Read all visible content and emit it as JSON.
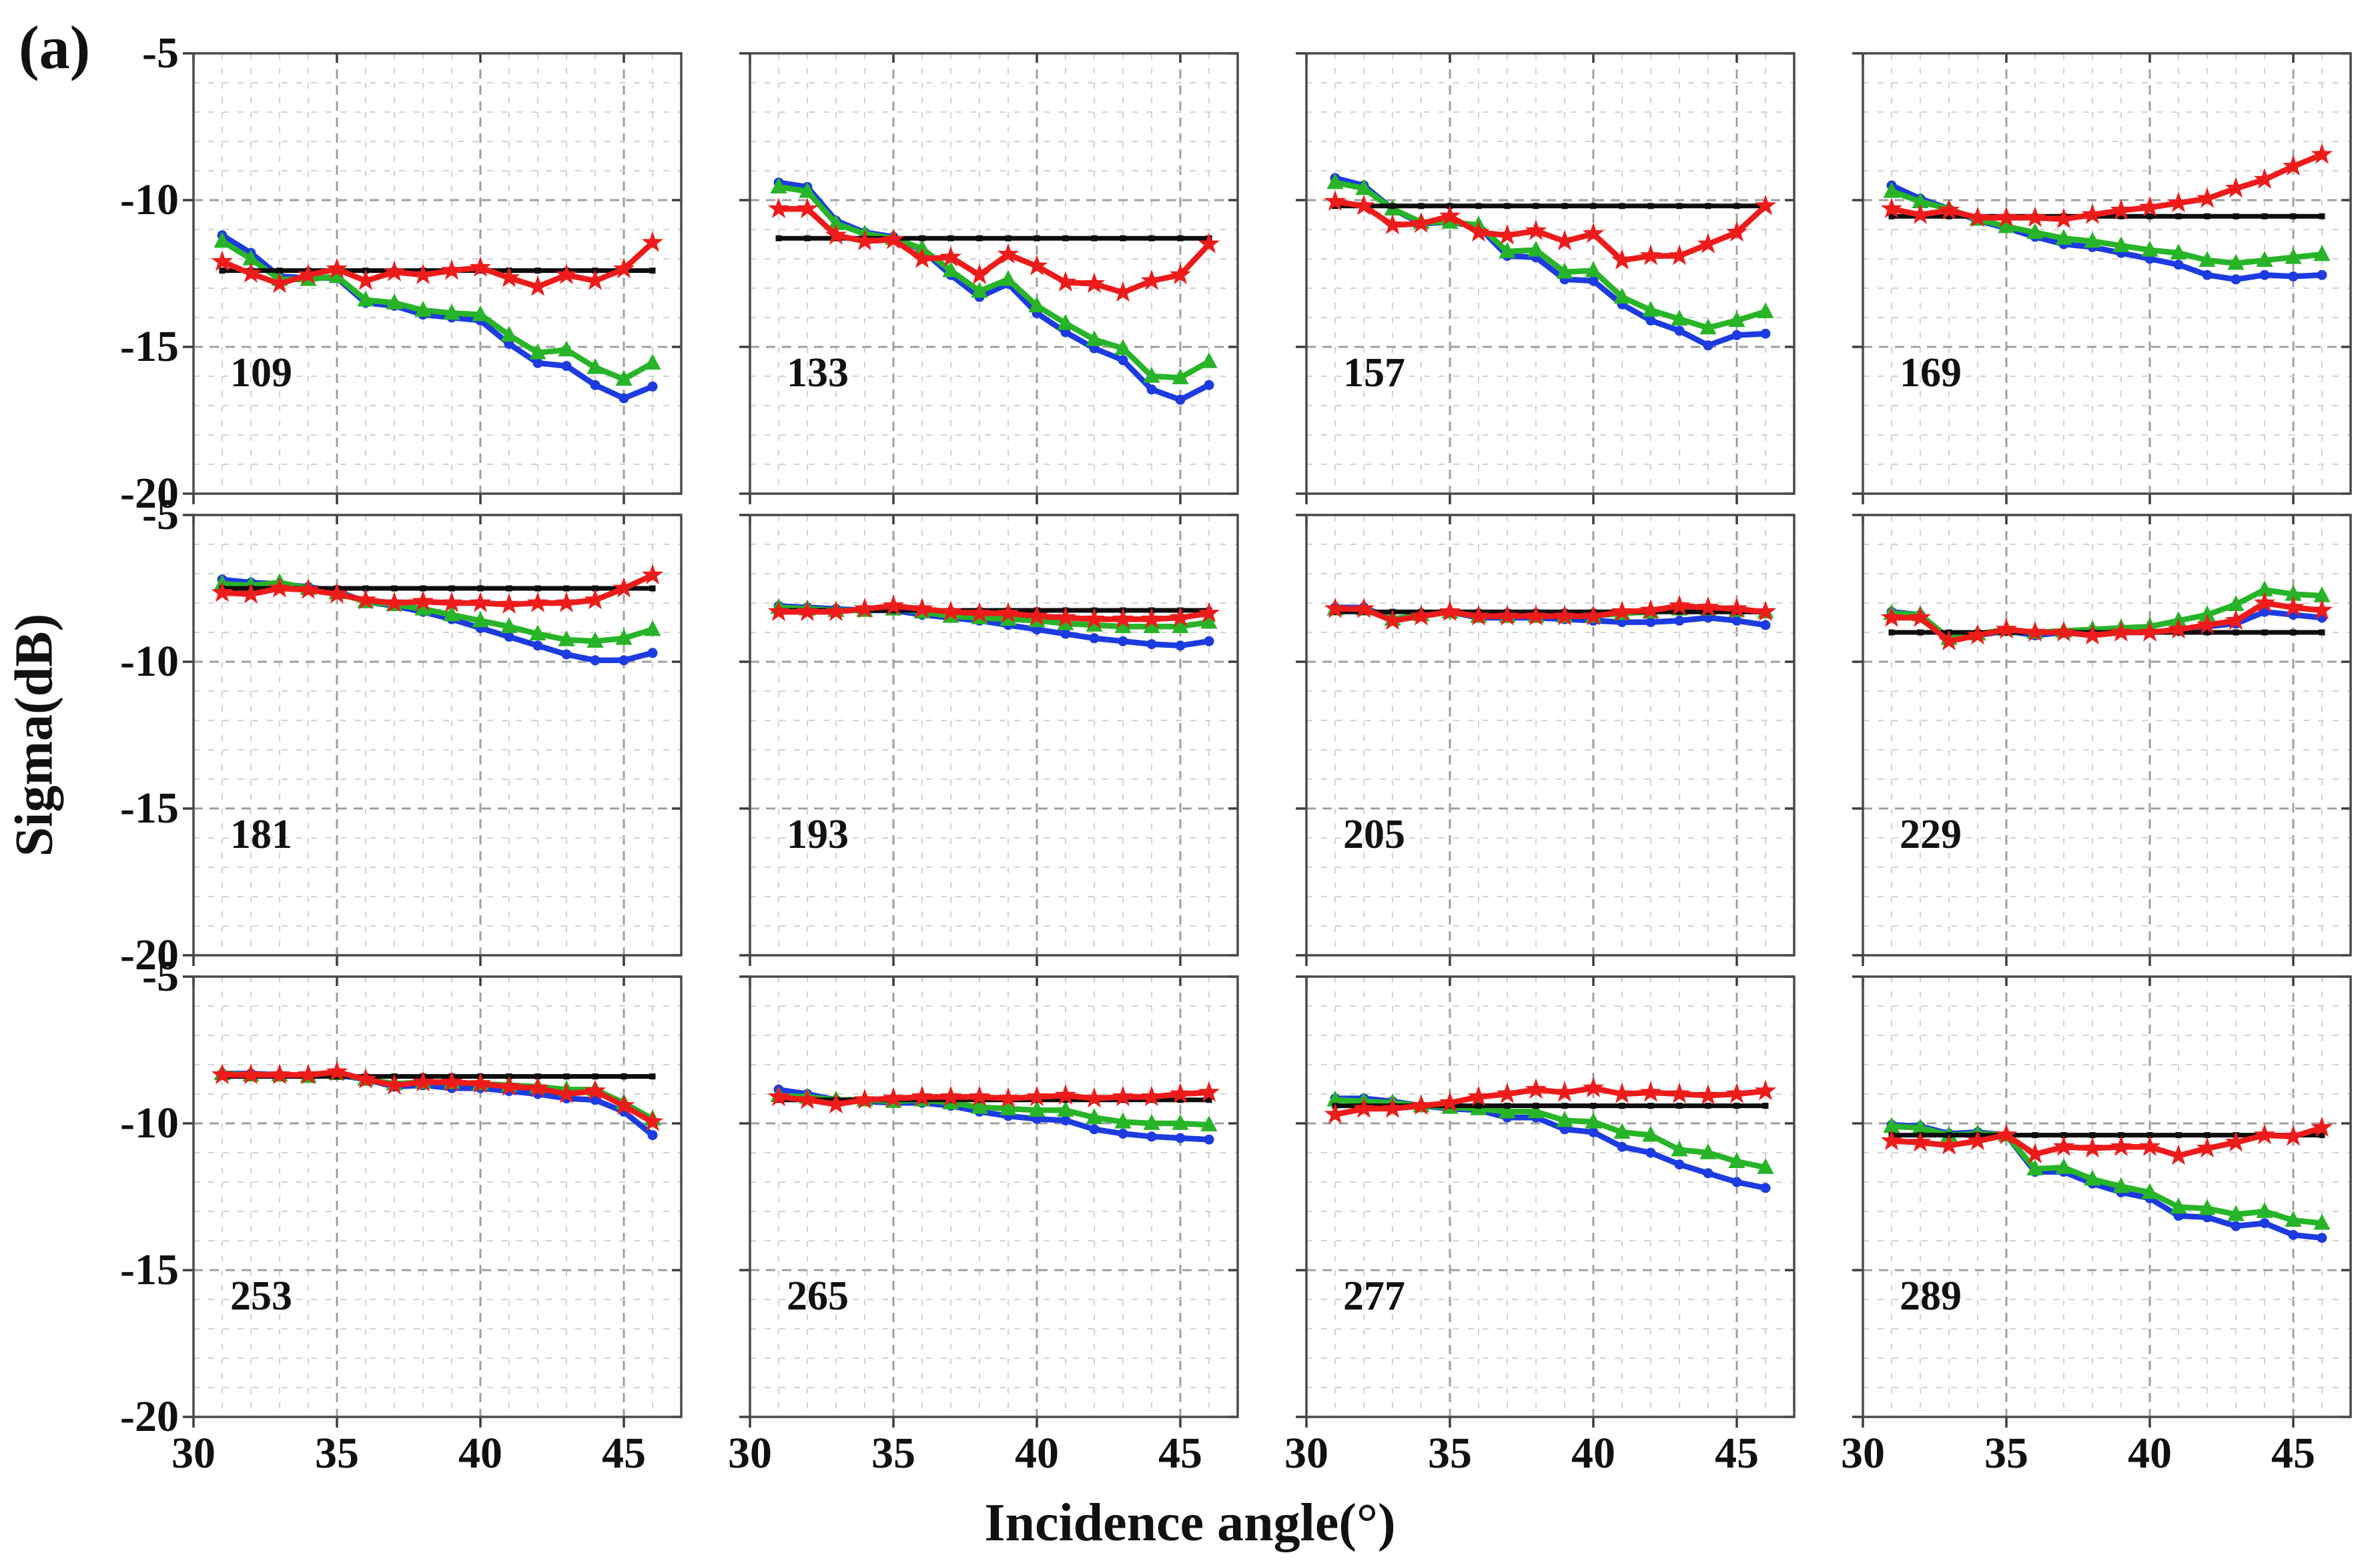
{
  "figure_label": "(a)",
  "axes": {
    "xlabel": "Incidence angle(°)",
    "ylabel": "Sigma(dB)",
    "x_tick_labels": [
      "30",
      "35",
      "40",
      "45"
    ],
    "y_tick_labels": [
      "-5",
      "-10",
      "-15",
      "-20"
    ],
    "x_ticks": [
      30,
      35,
      40,
      45
    ],
    "y_ticks": [
      -5,
      -10,
      -15,
      -20
    ],
    "xlim": [
      30,
      47
    ],
    "ylim": [
      -20,
      -5
    ],
    "grid": "on"
  },
  "colors": {
    "blue_series": "#1c3be0",
    "green_series": "#28b428",
    "red_series": "#ee1b1b",
    "reference_line": "#0d0d0d",
    "grid_minor": "#d5d5d5",
    "grid_major": "#9f9f9f",
    "axis_border": "#4a4a4a",
    "tick_mark": "#3c3c3c"
  },
  "chart_data": {
    "type": "line",
    "title": "",
    "xlabel": "Incidence angle(°)",
    "ylabel": "Sigma(dB)",
    "xlim": [
      30,
      47
    ],
    "ylim": [
      -20,
      -5
    ],
    "x_values": [
      31,
      32,
      33,
      34,
      35,
      36,
      37,
      38,
      39,
      40,
      41,
      42,
      43,
      44,
      45,
      46
    ],
    "series_style": {
      "blue": {
        "marker": "circle",
        "color": "#1c3be0"
      },
      "green": {
        "marker": "triangle",
        "color": "#28b428"
      },
      "red": {
        "marker": "star",
        "color": "#ee1b1b"
      },
      "reference": {
        "marker": "square",
        "color": "#0d0d0d"
      }
    },
    "panels": [
      {
        "label": "109",
        "reference": -12.4,
        "series": {
          "blue": [
            -11.2,
            -11.8,
            -12.6,
            -12.65,
            -12.65,
            -13.5,
            -13.6,
            -13.9,
            -14.0,
            -14.1,
            -14.9,
            -15.55,
            -15.65,
            -16.3,
            -16.75,
            -16.35
          ],
          "green": [
            -11.4,
            -12.0,
            -12.7,
            -12.7,
            -12.6,
            -13.4,
            -13.5,
            -13.75,
            -13.85,
            -13.9,
            -14.6,
            -15.2,
            -15.1,
            -15.7,
            -16.1,
            -15.55
          ],
          "red": [
            -12.1,
            -12.5,
            -12.85,
            -12.55,
            -12.35,
            -12.75,
            -12.45,
            -12.55,
            -12.4,
            -12.3,
            -12.65,
            -12.95,
            -12.55,
            -12.75,
            -12.35,
            -11.45
          ]
        }
      },
      {
        "label": "133",
        "reference": -11.3,
        "series": {
          "blue": [
            -9.4,
            -9.55,
            -10.7,
            -11.1,
            -11.25,
            -11.7,
            -12.55,
            -13.3,
            -12.85,
            -13.85,
            -14.5,
            -15.05,
            -15.45,
            -16.45,
            -16.8,
            -16.3
          ],
          "green": [
            -9.55,
            -9.7,
            -10.8,
            -11.15,
            -11.3,
            -11.65,
            -12.4,
            -13.1,
            -12.7,
            -13.6,
            -14.2,
            -14.75,
            -15.05,
            -16.0,
            -16.05,
            -15.5
          ],
          "red": [
            -10.3,
            -10.3,
            -11.2,
            -11.4,
            -11.35,
            -12.0,
            -11.95,
            -12.55,
            -11.85,
            -12.25,
            -12.8,
            -12.85,
            -13.15,
            -12.75,
            -12.55,
            -11.5
          ]
        }
      },
      {
        "label": "157",
        "reference": -10.2,
        "series": {
          "blue": [
            -9.25,
            -9.5,
            -10.3,
            -10.8,
            -10.75,
            -10.9,
            -11.9,
            -11.95,
            -12.7,
            -12.75,
            -13.55,
            -14.1,
            -14.45,
            -14.95,
            -14.6,
            -14.55
          ],
          "green": [
            -9.4,
            -9.6,
            -10.3,
            -10.75,
            -10.75,
            -10.85,
            -11.75,
            -11.7,
            -12.45,
            -12.4,
            -13.3,
            -13.75,
            -14.05,
            -14.35,
            -14.1,
            -13.8
          ],
          "red": [
            -10.05,
            -10.2,
            -10.85,
            -10.8,
            -10.55,
            -11.1,
            -11.2,
            -11.05,
            -11.4,
            -11.15,
            -12.05,
            -11.9,
            -11.9,
            -11.5,
            -11.1,
            -10.2
          ]
        }
      },
      {
        "label": "169",
        "reference": -10.55,
        "series": {
          "blue": [
            -9.5,
            -9.95,
            -10.3,
            -10.7,
            -10.95,
            -11.25,
            -11.5,
            -11.6,
            -11.8,
            -12.0,
            -12.2,
            -12.55,
            -12.7,
            -12.55,
            -12.6,
            -12.55
          ],
          "green": [
            -9.7,
            -10.05,
            -10.3,
            -10.65,
            -10.9,
            -11.1,
            -11.3,
            -11.4,
            -11.55,
            -11.7,
            -11.8,
            -12.05,
            -12.15,
            -12.05,
            -11.95,
            -11.85
          ],
          "red": [
            -10.3,
            -10.5,
            -10.35,
            -10.6,
            -10.6,
            -10.6,
            -10.65,
            -10.5,
            -10.35,
            -10.25,
            -10.1,
            -9.95,
            -9.6,
            -9.3,
            -8.85,
            -8.45
          ]
        }
      },
      {
        "label": "181",
        "reference": -7.5,
        "series": {
          "blue": [
            -7.2,
            -7.3,
            -7.35,
            -7.45,
            -7.6,
            -7.95,
            -8.1,
            -8.3,
            -8.55,
            -8.85,
            -9.15,
            -9.45,
            -9.75,
            -9.95,
            -9.95,
            -9.7
          ],
          "green": [
            -7.35,
            -7.4,
            -7.3,
            -7.5,
            -7.65,
            -7.95,
            -8.05,
            -8.2,
            -8.4,
            -8.6,
            -8.8,
            -9.05,
            -9.25,
            -9.3,
            -9.2,
            -8.9
          ],
          "red": [
            -7.65,
            -7.7,
            -7.5,
            -7.55,
            -7.7,
            -7.9,
            -8.0,
            -7.95,
            -8.0,
            -8.0,
            -8.05,
            -8.0,
            -8.0,
            -7.9,
            -7.5,
            -7.05
          ]
        }
      },
      {
        "label": "193",
        "reference": -8.25,
        "series": {
          "blue": [
            -8.1,
            -8.15,
            -8.2,
            -8.25,
            -8.25,
            -8.4,
            -8.5,
            -8.6,
            -8.75,
            -8.9,
            -9.05,
            -9.2,
            -9.3,
            -9.4,
            -9.45,
            -9.3
          ],
          "green": [
            -8.15,
            -8.2,
            -8.25,
            -8.25,
            -8.2,
            -8.3,
            -8.45,
            -8.5,
            -8.55,
            -8.6,
            -8.7,
            -8.75,
            -8.8,
            -8.8,
            -8.8,
            -8.65
          ],
          "red": [
            -8.3,
            -8.3,
            -8.3,
            -8.2,
            -8.1,
            -8.2,
            -8.3,
            -8.35,
            -8.35,
            -8.45,
            -8.5,
            -8.55,
            -8.55,
            -8.55,
            -8.5,
            -8.35
          ]
        }
      },
      {
        "label": "205",
        "reference": -8.3,
        "series": {
          "blue": [
            -8.15,
            -8.15,
            -8.55,
            -8.4,
            -8.3,
            -8.5,
            -8.5,
            -8.5,
            -8.55,
            -8.6,
            -8.65,
            -8.65,
            -8.6,
            -8.5,
            -8.6,
            -8.75
          ],
          "green": [
            -8.2,
            -8.2,
            -8.55,
            -8.4,
            -8.3,
            -8.45,
            -8.45,
            -8.45,
            -8.45,
            -8.45,
            -8.35,
            -8.3,
            -8.2,
            -8.2,
            -8.25,
            -8.3
          ],
          "red": [
            -8.2,
            -8.2,
            -8.6,
            -8.45,
            -8.3,
            -8.45,
            -8.45,
            -8.45,
            -8.45,
            -8.45,
            -8.3,
            -8.25,
            -8.1,
            -8.15,
            -8.2,
            -8.3
          ]
        }
      },
      {
        "label": "229",
        "reference": -9.0,
        "series": {
          "blue": [
            -8.3,
            -8.4,
            -9.25,
            -9.1,
            -8.95,
            -9.1,
            -9.0,
            -9.1,
            -9.0,
            -9.0,
            -8.95,
            -8.8,
            -8.7,
            -8.3,
            -8.4,
            -8.5
          ],
          "green": [
            -8.35,
            -8.4,
            -9.2,
            -9.05,
            -8.9,
            -9.0,
            -8.95,
            -8.9,
            -8.85,
            -8.8,
            -8.6,
            -8.4,
            -8.05,
            -7.55,
            -7.7,
            -7.75
          ],
          "red": [
            -8.5,
            -8.5,
            -9.3,
            -9.1,
            -8.9,
            -9.0,
            -9.0,
            -9.1,
            -9.0,
            -9.0,
            -8.9,
            -8.75,
            -8.6,
            -8.0,
            -8.15,
            -8.25
          ]
        }
      },
      {
        "label": "253",
        "reference": -8.4,
        "series": {
          "blue": [
            -8.3,
            -8.3,
            -8.35,
            -8.4,
            -8.35,
            -8.5,
            -8.75,
            -8.7,
            -8.8,
            -8.8,
            -8.9,
            -9.0,
            -9.15,
            -9.2,
            -9.6,
            -10.4
          ],
          "green": [
            -8.3,
            -8.35,
            -8.35,
            -8.4,
            -8.3,
            -8.5,
            -8.65,
            -8.6,
            -8.6,
            -8.65,
            -8.7,
            -8.75,
            -8.85,
            -8.85,
            -9.3,
            -9.85
          ],
          "red": [
            -8.35,
            -8.35,
            -8.35,
            -8.35,
            -8.25,
            -8.5,
            -8.7,
            -8.6,
            -8.6,
            -8.65,
            -8.75,
            -8.8,
            -9.0,
            -8.9,
            -9.4,
            -9.95
          ]
        }
      },
      {
        "label": "265",
        "reference": -9.2,
        "series": {
          "blue": [
            -8.85,
            -9.0,
            -9.2,
            -9.25,
            -9.3,
            -9.3,
            -9.4,
            -9.6,
            -9.75,
            -9.85,
            -9.9,
            -10.2,
            -10.35,
            -10.45,
            -10.5,
            -10.55
          ],
          "green": [
            -9.05,
            -9.1,
            -9.2,
            -9.2,
            -9.25,
            -9.2,
            -9.3,
            -9.45,
            -9.5,
            -9.55,
            -9.55,
            -9.8,
            -9.95,
            -10.0,
            -10.0,
            -10.05
          ],
          "red": [
            -9.1,
            -9.2,
            -9.35,
            -9.2,
            -9.15,
            -9.1,
            -9.1,
            -9.1,
            -9.15,
            -9.1,
            -9.05,
            -9.15,
            -9.1,
            -9.1,
            -9.0,
            -8.95
          ]
        }
      },
      {
        "label": "277",
        "reference": -9.4,
        "series": {
          "blue": [
            -9.15,
            -9.15,
            -9.25,
            -9.4,
            -9.5,
            -9.55,
            -9.8,
            -9.8,
            -10.2,
            -10.3,
            -10.8,
            -11.0,
            -11.4,
            -11.7,
            -12.0,
            -12.2
          ],
          "green": [
            -9.2,
            -9.25,
            -9.3,
            -9.4,
            -9.45,
            -9.5,
            -9.6,
            -9.6,
            -9.9,
            -9.95,
            -10.3,
            -10.4,
            -10.9,
            -11.0,
            -11.3,
            -11.5
          ],
          "red": [
            -9.7,
            -9.5,
            -9.5,
            -9.4,
            -9.3,
            -9.1,
            -9.0,
            -8.85,
            -8.95,
            -8.8,
            -9.0,
            -8.95,
            -9.0,
            -9.05,
            -9.0,
            -8.9
          ]
        }
      },
      {
        "label": "289",
        "reference": -10.4,
        "series": {
          "blue": [
            -10.05,
            -10.1,
            -10.35,
            -10.3,
            -10.4,
            -11.65,
            -11.65,
            -12.05,
            -12.35,
            -12.55,
            -13.15,
            -13.2,
            -13.5,
            -13.4,
            -13.8,
            -13.9
          ],
          "green": [
            -10.1,
            -10.15,
            -10.4,
            -10.35,
            -10.4,
            -11.55,
            -11.5,
            -11.9,
            -12.15,
            -12.35,
            -12.85,
            -12.9,
            -13.1,
            -13.0,
            -13.3,
            -13.4
          ],
          "red": [
            -10.6,
            -10.65,
            -10.75,
            -10.6,
            -10.4,
            -11.05,
            -10.8,
            -10.85,
            -10.8,
            -10.8,
            -11.1,
            -10.85,
            -10.65,
            -10.4,
            -10.45,
            -10.15
          ]
        }
      }
    ]
  }
}
